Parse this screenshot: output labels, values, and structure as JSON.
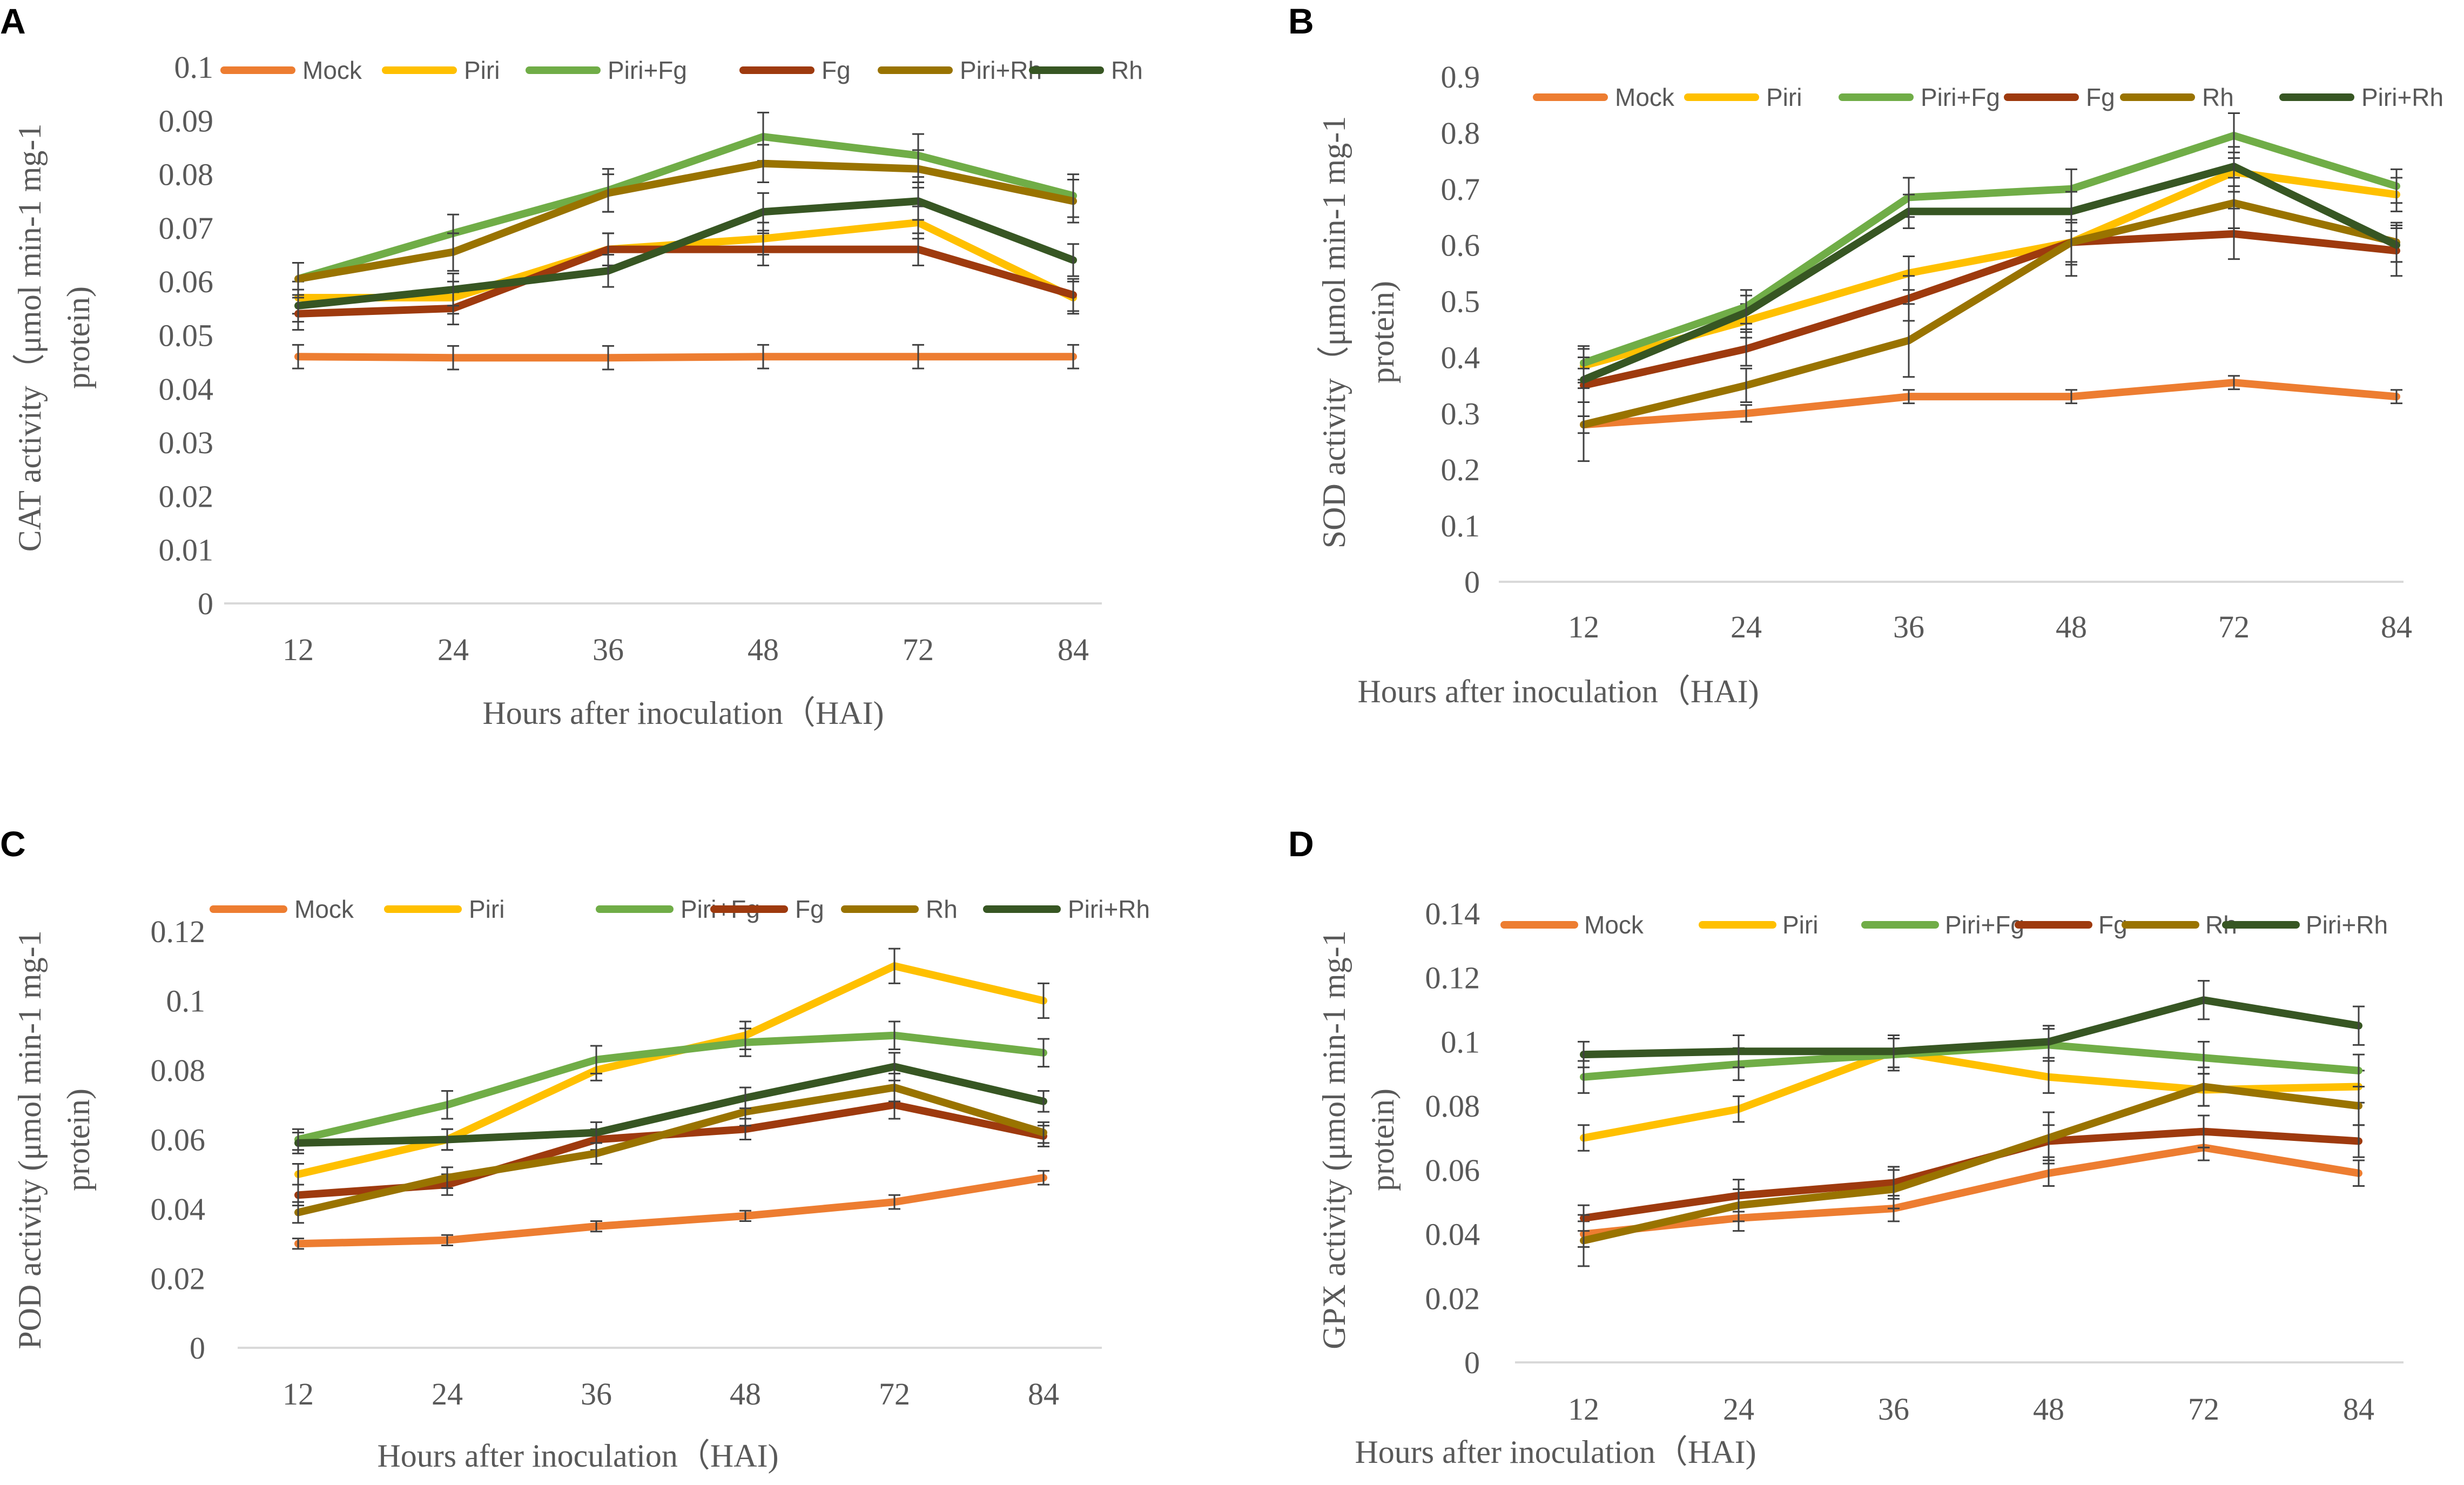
{
  "chart_data": [
    {
      "type": "line",
      "panel": "A",
      "title": "",
      "xlabel": "Hours after inoculation（HAI)",
      "ylabel_lines": [
        "CAT activity（μmol min-1 mg-1",
        "protein)"
      ],
      "categories": [
        "12",
        "24",
        "36",
        "48",
        "72",
        "84"
      ],
      "ylim": [
        0,
        0.1
      ],
      "yticks": [
        "0",
        "0.01",
        "0.02",
        "0.03",
        "0.04",
        "0.05",
        "0.06",
        "0.07",
        "0.08",
        "0.09",
        "0.1"
      ],
      "error_bars": true,
      "legend_position": "top",
      "series": [
        {
          "name": "Mock",
          "color": "#ED7D31",
          "values": [
            0.046,
            0.0458,
            0.0458,
            0.046,
            0.046,
            0.046
          ],
          "errors": [
            0.0022,
            0.0022,
            0.0022,
            0.0022,
            0.0022,
            0.0022
          ]
        },
        {
          "name": "Piri",
          "color": "#FFC000",
          "values": [
            0.057,
            0.057,
            0.066,
            0.068,
            0.071,
            0.057
          ],
          "errors": [
            0.003,
            0.003,
            0.003,
            0.003,
            0.003,
            0.003
          ]
        },
        {
          "name": "Piri+Fg",
          "color": "#70AD47",
          "values": [
            0.0605,
            0.069,
            0.077,
            0.087,
            0.0835,
            0.076
          ],
          "errors": [
            0.003,
            0.0035,
            0.004,
            0.0045,
            0.004,
            0.004
          ]
        },
        {
          "name": "Fg",
          "color": "#9E3A0E",
          "values": [
            0.054,
            0.055,
            0.066,
            0.066,
            0.066,
            0.0575
          ],
          "errors": [
            0.003,
            0.003,
            0.003,
            0.003,
            0.003,
            0.003
          ]
        },
        {
          "name": "Piri+Rh",
          "color": "#997300",
          "values": [
            0.0605,
            0.0655,
            0.0765,
            0.082,
            0.081,
            0.075
          ],
          "errors": [
            0.003,
            0.0035,
            0.0035,
            0.0035,
            0.0035,
            0.004
          ]
        },
        {
          "name": "Rh",
          "color": "#375623",
          "values": [
            0.0555,
            0.0585,
            0.062,
            0.073,
            0.075,
            0.064
          ],
          "errors": [
            0.003,
            0.003,
            0.003,
            0.0035,
            0.0035,
            0.003
          ]
        }
      ]
    },
    {
      "type": "line",
      "panel": "B",
      "title": "",
      "xlabel": "Hours after inoculation（HAI)",
      "ylabel_lines": [
        "SOD activity（μmol min-1 mg-1",
        "protein)"
      ],
      "categories": [
        "12",
        "24",
        "36",
        "48",
        "72",
        "84"
      ],
      "ylim": [
        0,
        0.9
      ],
      "yticks": [
        "0",
        "0.1",
        "0.2",
        "0.3",
        "0.4",
        "0.5",
        "0.6",
        "0.7",
        "0.8",
        "0.9"
      ],
      "error_bars": true,
      "legend_position": "top",
      "series": [
        {
          "name": "Mock",
          "color": "#ED7D31",
          "values": [
            0.28,
            0.3,
            0.33,
            0.33,
            0.355,
            0.33
          ],
          "errors": [
            0.015,
            0.015,
            0.012,
            0.012,
            0.012,
            0.012
          ]
        },
        {
          "name": "Piri",
          "color": "#FFC000",
          "values": [
            0.385,
            0.465,
            0.55,
            0.605,
            0.73,
            0.69
          ],
          "errors": [
            0.03,
            0.03,
            0.03,
            0.035,
            0.035,
            0.03
          ]
        },
        {
          "name": "Piri+Fg",
          "color": "#70AD47",
          "values": [
            0.39,
            0.49,
            0.685,
            0.7,
            0.795,
            0.705
          ],
          "errors": [
            0.03,
            0.03,
            0.035,
            0.035,
            0.04,
            0.03
          ]
        },
        {
          "name": "Fg",
          "color": "#9E3A0E",
          "values": [
            0.35,
            0.415,
            0.505,
            0.605,
            0.62,
            0.59
          ],
          "errors": [
            0.03,
            0.03,
            0.04,
            0.04,
            0.045,
            0.045
          ]
        },
        {
          "name": "Rh",
          "color": "#997300",
          "values": [
            0.28,
            0.35,
            0.43,
            0.605,
            0.675,
            0.605
          ],
          "errors": [
            0.065,
            0.03,
            0.065,
            0.06,
            0.045,
            0.035
          ]
        },
        {
          "name": "Piri+Rh",
          "color": "#375623",
          "values": [
            0.36,
            0.48,
            0.66,
            0.66,
            0.74,
            0.6
          ],
          "errors": [
            0.04,
            0.03,
            0.03,
            0.035,
            0.035,
            0.03
          ]
        }
      ]
    },
    {
      "type": "line",
      "panel": "C",
      "title": "",
      "xlabel": "Hours after inoculation（HAI)",
      "ylabel_lines": [
        "POD activity (μmol min-1 mg-1",
        "protein)"
      ],
      "categories": [
        "12",
        "24",
        "36",
        "48",
        "72",
        "84"
      ],
      "ylim": [
        0,
        0.12
      ],
      "yticks": [
        "0",
        "0.02",
        "0.04",
        "0.06",
        "0.08",
        "0.1",
        "0.12"
      ],
      "error_bars": true,
      "legend_position": "top",
      "series": [
        {
          "name": "Mock",
          "color": "#ED7D31",
          "values": [
            0.03,
            0.031,
            0.035,
            0.038,
            0.042,
            0.049
          ],
          "errors": [
            0.0015,
            0.0015,
            0.0015,
            0.0015,
            0.002,
            0.002
          ]
        },
        {
          "name": "Piri",
          "color": "#FFC000",
          "values": [
            0.05,
            0.06,
            0.08,
            0.09,
            0.11,
            0.1
          ],
          "errors": [
            0.003,
            0.003,
            0.003,
            0.004,
            0.005,
            0.005
          ]
        },
        {
          "name": "Piri+Fg",
          "color": "#70AD47",
          "values": [
            0.06,
            0.07,
            0.083,
            0.088,
            0.09,
            0.085
          ],
          "errors": [
            0.003,
            0.004,
            0.004,
            0.004,
            0.004,
            0.004
          ]
        },
        {
          "name": "Fg",
          "color": "#9E3A0E",
          "values": [
            0.044,
            0.047,
            0.06,
            0.063,
            0.07,
            0.061
          ],
          "errors": [
            0.003,
            0.003,
            0.003,
            0.003,
            0.004,
            0.003
          ]
        },
        {
          "name": "Rh",
          "color": "#997300",
          "values": [
            0.039,
            0.049,
            0.056,
            0.068,
            0.075,
            0.062
          ],
          "errors": [
            0.003,
            0.003,
            0.003,
            0.004,
            0.004,
            0.003
          ]
        },
        {
          "name": "Piri+Rh",
          "color": "#375623",
          "values": [
            0.059,
            0.06,
            0.062,
            0.072,
            0.081,
            0.071
          ],
          "errors": [
            0.003,
            0.003,
            0.003,
            0.003,
            0.004,
            0.003
          ]
        }
      ]
    },
    {
      "type": "line",
      "panel": "D",
      "title": "",
      "xlabel": "Hours after inoculation（HAI)",
      "ylabel_lines": [
        "GPX activity (μmol min-1 mg-1",
        "protein)"
      ],
      "categories": [
        "12",
        "24",
        "36",
        "48",
        "72",
        "84"
      ],
      "ylim": [
        0,
        0.14
      ],
      "yticks": [
        "0",
        "0.02",
        "0.04",
        "0.06",
        "0.08",
        "0.1",
        "0.12",
        "0.14"
      ],
      "error_bars": true,
      "legend_position": "top",
      "series": [
        {
          "name": "Mock",
          "color": "#ED7D31",
          "values": [
            0.04,
            0.045,
            0.048,
            0.059,
            0.067,
            0.059
          ],
          "errors": [
            0.004,
            0.004,
            0.004,
            0.004,
            0.004,
            0.004
          ]
        },
        {
          "name": "Piri",
          "color": "#FFC000",
          "values": [
            0.07,
            0.079,
            0.097,
            0.089,
            0.085,
            0.086
          ],
          "errors": [
            0.004,
            0.004,
            0.005,
            0.005,
            0.005,
            0.005
          ]
        },
        {
          "name": "Piri+Fg",
          "color": "#70AD47",
          "values": [
            0.089,
            0.093,
            0.096,
            0.099,
            0.095,
            0.091
          ],
          "errors": [
            0.005,
            0.005,
            0.005,
            0.005,
            0.005,
            0.005
          ]
        },
        {
          "name": "Fg",
          "color": "#9E3A0E",
          "values": [
            0.045,
            0.052,
            0.056,
            0.069,
            0.072,
            0.069
          ],
          "errors": [
            0.004,
            0.005,
            0.005,
            0.005,
            0.005,
            0.005
          ]
        },
        {
          "name": "Rh",
          "color": "#997300",
          "values": [
            0.038,
            0.049,
            0.054,
            0.07,
            0.086,
            0.08
          ],
          "errors": [
            0.008,
            0.005,
            0.006,
            0.008,
            0.006,
            0.006
          ]
        },
        {
          "name": "Piri+Rh",
          "color": "#375623",
          "values": [
            0.096,
            0.097,
            0.097,
            0.1,
            0.113,
            0.105
          ],
          "errors": [
            0.004,
            0.005,
            0.005,
            0.005,
            0.006,
            0.006
          ]
        }
      ]
    }
  ]
}
